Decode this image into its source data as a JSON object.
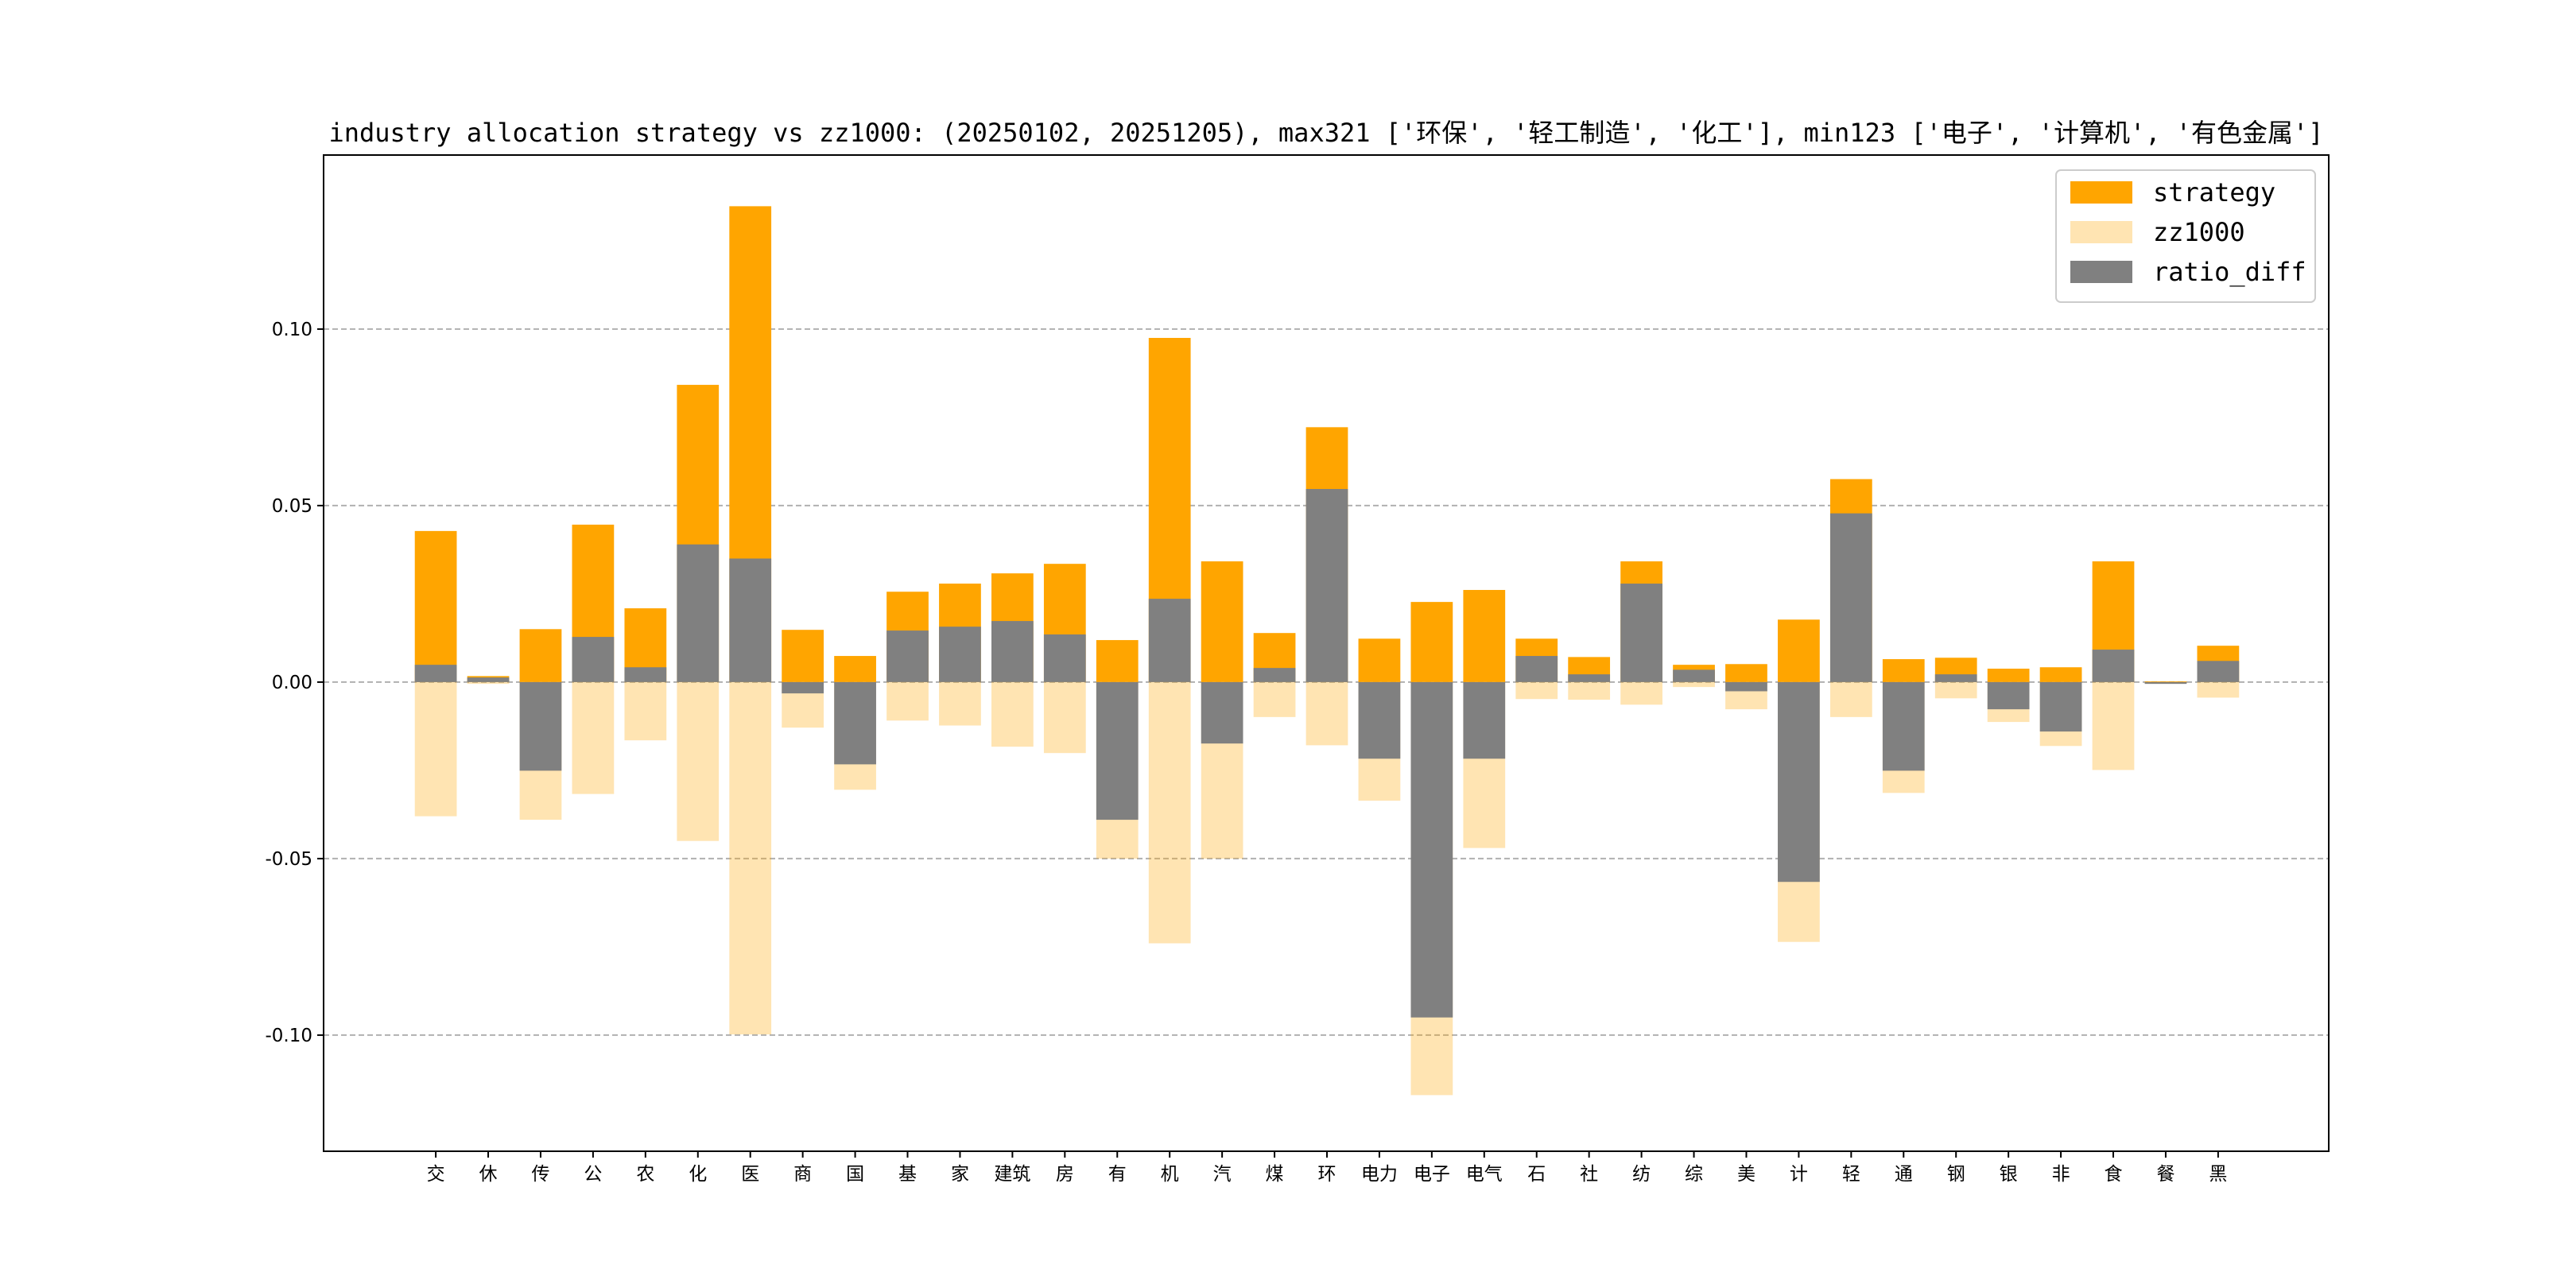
{
  "chart_data": {
    "type": "bar",
    "title": "industry allocation strategy vs zz1000: (20250102, 20251205), max321 ['环保', '轻工制造', '化工'], min123 ['电子', '计算机', '有色金属']",
    "xlabel": "",
    "ylabel": "",
    "ylim": [
      -0.1329,
      0.1493
    ],
    "yticks": [
      -0.1,
      -0.05,
      0.0,
      0.05,
      0.1
    ],
    "ytick_labels": [
      "-0.10",
      "-0.05",
      "0.00",
      "0.05",
      "0.10"
    ],
    "grid": "horizontal dashed",
    "legend_position": "top-right",
    "categories": [
      "交",
      "休",
      "传",
      "公",
      "农",
      "化",
      "医",
      "商",
      "国",
      "基",
      "家",
      "建筑",
      "房",
      "有",
      "机",
      "汽",
      "煤",
      "环",
      "电力",
      "电子",
      "电气",
      "石",
      "社",
      "纺",
      "综",
      "美",
      "计",
      "轻",
      "通",
      "钢",
      "银",
      "非",
      "食",
      "餐",
      "黑"
    ],
    "series": [
      {
        "name": "strategy",
        "color": "#ffa500",
        "opacity": 1,
        "values": [
          0.0428,
          0.0017,
          0.015,
          0.0446,
          0.0209,
          0.0842,
          0.1348,
          0.0148,
          0.0074,
          0.0256,
          0.0279,
          0.0308,
          0.0335,
          0.0119,
          0.0975,
          0.0342,
          0.0139,
          0.0722,
          0.0123,
          0.0227,
          0.0261,
          0.0123,
          0.0071,
          0.0342,
          0.0049,
          0.0051,
          0.0177,
          0.0575,
          0.0065,
          0.0069,
          0.0038,
          0.0042,
          0.0342,
          0.0002,
          0.0103
        ]
      },
      {
        "name": "zz1000",
        "color": "#ffa500",
        "opacity": 0.3,
        "values": [
          -0.038,
          -0.0005,
          -0.039,
          -0.0317,
          -0.0165,
          -0.045,
          -0.0998,
          -0.0129,
          -0.0305,
          -0.0109,
          -0.0123,
          -0.0183,
          -0.0201,
          -0.05,
          -0.074,
          -0.05,
          -0.0099,
          -0.0179,
          -0.0336,
          -0.117,
          -0.047,
          -0.0048,
          -0.005,
          -0.0064,
          -0.0014,
          -0.0077,
          -0.0736,
          -0.0099,
          -0.0314,
          -0.0046,
          -0.0113,
          -0.0181,
          -0.0249,
          -0.0002,
          -0.0044
        ]
      },
      {
        "name": "ratio_diff",
        "color": "#808080",
        "opacity": 1,
        "values": [
          0.0049,
          0.0013,
          -0.0251,
          0.0128,
          0.0042,
          0.039,
          0.035,
          -0.0032,
          -0.0233,
          0.0146,
          0.0157,
          0.0173,
          0.0135,
          -0.039,
          0.0236,
          -0.0174,
          0.004,
          0.0547,
          -0.0217,
          -0.095,
          -0.0217,
          0.0074,
          0.0022,
          0.0279,
          0.0035,
          -0.0026,
          -0.0566,
          0.0478,
          -0.0251,
          0.0022,
          -0.0077,
          -0.014,
          0.0092,
          -0.0005,
          0.006
        ]
      }
    ]
  }
}
